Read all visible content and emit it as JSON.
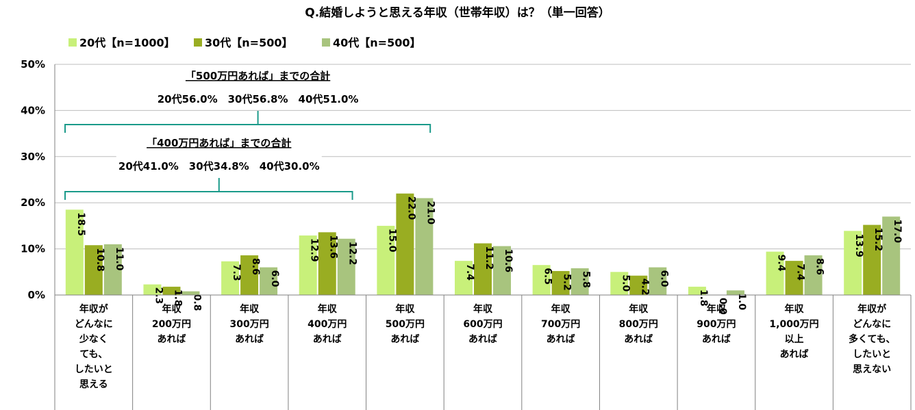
{
  "chart_data": {
    "type": "bar",
    "title": "Q.結婚しようと思える年収（世帯年収）は？（単一回答）",
    "series": [
      {
        "name": "20代【n=1000】",
        "color": "#c8f07a",
        "values": [
          18.5,
          2.3,
          7.3,
          12.9,
          15.0,
          7.4,
          6.5,
          5.0,
          1.8,
          9.4,
          13.9
        ]
      },
      {
        "name": "30代【n=500】",
        "color": "#99ad22",
        "values": [
          10.8,
          1.8,
          8.6,
          13.6,
          22.0,
          11.2,
          5.2,
          4.2,
          0.0,
          7.4,
          15.2
        ]
      },
      {
        "name": "40代【n=500】",
        "color": "#a8c47e",
        "values": [
          11.0,
          0.8,
          6.0,
          12.2,
          21.0,
          10.6,
          5.8,
          6.0,
          1.0,
          8.6,
          17.0
        ]
      }
    ],
    "value_labels": [
      [
        "18.5",
        "2.3",
        "7.3",
        "12.9",
        "15.0",
        "7.4",
        "6.5",
        "5.0",
        "1.8",
        "9.4",
        "13.9"
      ],
      [
        "10.8",
        "1.8",
        "8.6",
        "13.6",
        "22.0",
        "11.2",
        "5.2",
        "4.2",
        "0.0",
        "7.4",
        "15.2"
      ],
      [
        "11.0",
        "0.8",
        "6.0",
        "12.2",
        "21.0",
        "10.6",
        "5.8",
        "6.0",
        "1.0",
        "8.6",
        "17.0"
      ]
    ],
    "categories": [
      [
        "年収が",
        "どんなに",
        "少なく",
        "ても、",
        "したいと",
        "思える"
      ],
      [
        "年収",
        "200万円",
        "あれば"
      ],
      [
        "年収",
        "300万円",
        "あれば"
      ],
      [
        "年収",
        "400万円",
        "あれば"
      ],
      [
        "年収",
        "500万円",
        "あれば"
      ],
      [
        "年収",
        "600万円",
        "あれば"
      ],
      [
        "年収",
        "700万円",
        "あれば"
      ],
      [
        "年収",
        "800万円",
        "あれば"
      ],
      [
        "年収",
        "900万円",
        "あれば"
      ],
      [
        "年収",
        "1,000万円",
        "以上",
        "あれば"
      ],
      [
        "年収が",
        "どんなに",
        "多くても、",
        "したいと",
        "思えない"
      ]
    ],
    "ylim": [
      0,
      50
    ],
    "yticks": [
      0,
      10,
      20,
      30,
      40,
      50
    ],
    "ytick_labels": [
      "0%",
      "10%",
      "20%",
      "30%",
      "40%",
      "50%"
    ],
    "grid": true,
    "legend_position": "top-left",
    "annotations": [
      {
        "title": "「500万円あれば」までの合計",
        "detail": "20代56.0%　30代56.8%　40代51.0%",
        "span_categories": [
          0,
          4
        ]
      },
      {
        "title": "「400万円あれば」までの合計",
        "detail": "20代41.0%　30代34.8%　40代30.0%",
        "span_categories": [
          0,
          3
        ]
      }
    ]
  }
}
